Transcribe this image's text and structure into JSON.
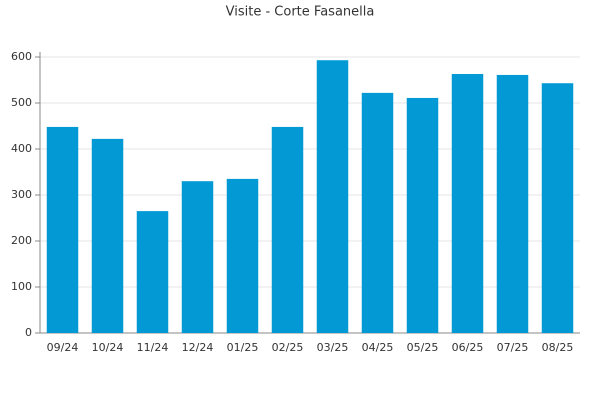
{
  "chart_data": {
    "type": "bar",
    "title": "Visite - Corte Fasanella",
    "categories": [
      "09/24",
      "10/24",
      "11/24",
      "12/24",
      "01/25",
      "02/25",
      "03/25",
      "04/25",
      "05/25",
      "06/25",
      "07/25",
      "08/25"
    ],
    "values": [
      448,
      422,
      265,
      330,
      335,
      448,
      593,
      522,
      511,
      563,
      561,
      543
    ],
    "color": "#0399d4",
    "ylim": [
      0,
      600
    ],
    "yticks": [
      0,
      100,
      200,
      300,
      400,
      500,
      600
    ],
    "grid": true
  }
}
